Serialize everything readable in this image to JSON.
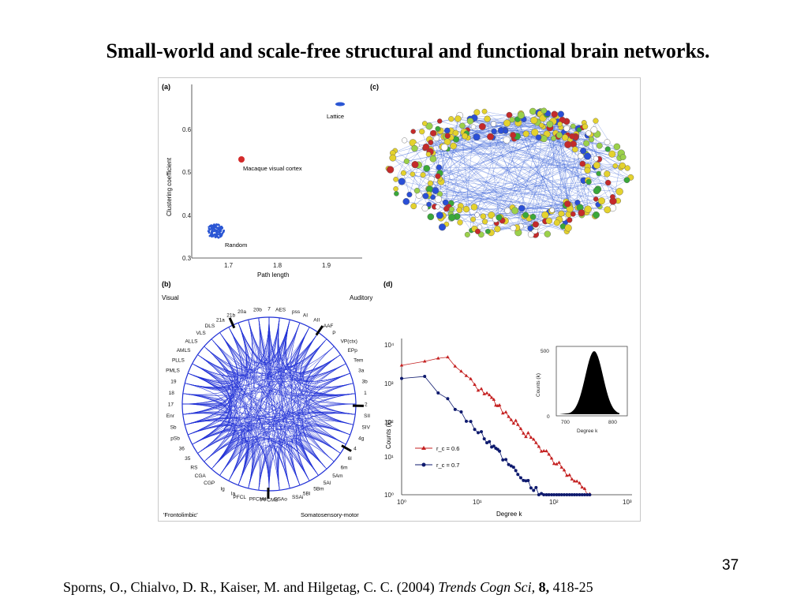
{
  "slide": {
    "title": "Small-world and scale-free structural and functional brain networks.",
    "page_number": "37"
  },
  "citation": {
    "authors": "Sporns, O., Chialvo, D. R., Kaiser, M. and Hilgetag, C. C. (2004) ",
    "journal": "Trends Cogn Sci,",
    "volume": " 8,",
    "pages": " 418-25"
  },
  "figure": {
    "panel_a": {
      "label": "(a)",
      "xlabel": "Path length",
      "ylabel": "Clustering coefficient",
      "annotations": {
        "lattice": "Lattice",
        "macaque": "Macaque visual cortex",
        "random": "Random"
      },
      "x_ticks": [
        "1.7",
        "1.8",
        "1.9"
      ],
      "y_ticks": [
        "0.3",
        "0.4",
        "0.5",
        "0.6"
      ],
      "colors": {
        "macaque": "#d42a2a",
        "points": "#2a56d4"
      }
    },
    "panel_b": {
      "label": "(b)",
      "groups": {
        "visual": "Visual",
        "auditory": "Auditory",
        "frontolimbic": "'Frontolimbic'",
        "somatosensory": "Somatosensory-motor"
      },
      "nodes": [
        "7",
        "AES",
        "pss",
        "AI",
        "AII",
        "AAF",
        "P",
        "VP(ctx)",
        "EPp",
        "Tem",
        "3a",
        "3b",
        "1",
        "2",
        "SII",
        "SIV",
        "4g",
        "4",
        "6l",
        "6m",
        "5Am",
        "5Al",
        "5Bm",
        "5Bl",
        "SSAi",
        "SSAo",
        "PFCMd",
        "PFCMil",
        "PFCL",
        "Ia",
        "Ig",
        "CGP",
        "CGA",
        "RS",
        "35",
        "36",
        "pSb",
        "Sb",
        "Enr",
        "17",
        "18",
        "19",
        "PMLS",
        "PLLS",
        "AMLS",
        "ALLS",
        "VLS",
        "DLS",
        "21a",
        "21b",
        "20a",
        "20b"
      ],
      "colors": {
        "edges": "#1f2fd6"
      }
    },
    "panel_c": {
      "label": "(c)"
    },
    "panel_d": {
      "label": "(d)",
      "xlabel": "Degree k",
      "ylabel": "Counts (k)",
      "x_ticks": [
        "10⁰",
        "10¹",
        "10²",
        "10³"
      ],
      "y_ticks": [
        "10⁰",
        "10¹",
        "10²",
        "10³",
        "10⁴"
      ],
      "legend": [
        "r_c = 0.6",
        "r_c = 0.7"
      ],
      "inset": {
        "xlabel": "Degree k",
        "ylabel": "Counts (k)",
        "x_ticks": [
          "700",
          "800"
        ],
        "y_ticks": [
          "0",
          "500"
        ]
      },
      "colors": {
        "series_1": "#c42020",
        "series_2": "#0e1a6e"
      }
    }
  }
}
